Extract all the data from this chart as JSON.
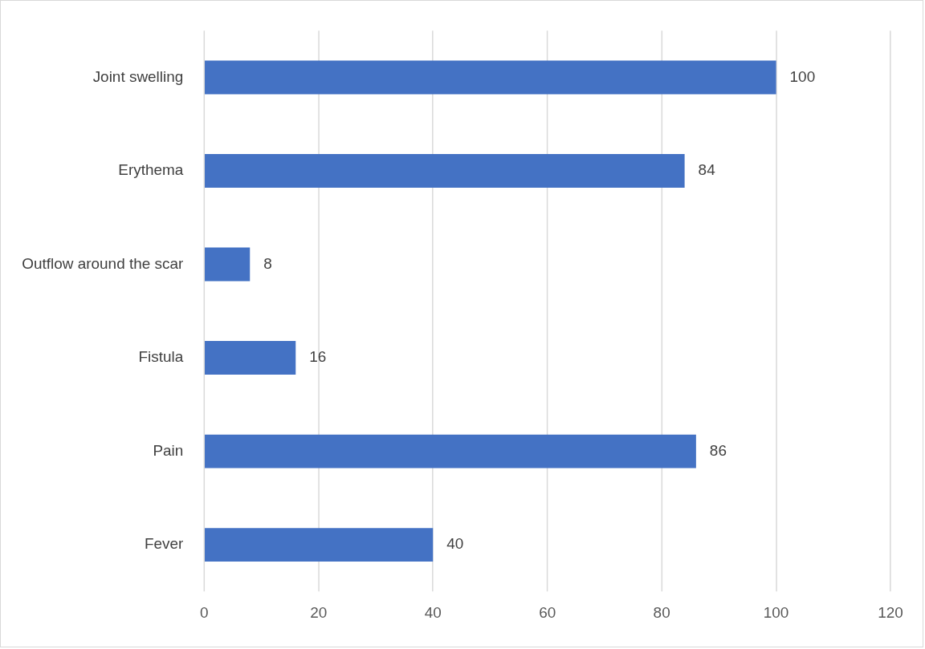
{
  "chart_data": {
    "type": "bar",
    "orientation": "horizontal",
    "categories": [
      "Joint swelling",
      "Erythema",
      "Outflow around the scar",
      "Fistula",
      "Pain",
      "Fever"
    ],
    "values": [
      100,
      84,
      8,
      16,
      86,
      40
    ],
    "color": "#4472c4",
    "xlim": [
      0,
      120
    ],
    "xticks": [
      0,
      20,
      40,
      60,
      80,
      100,
      120
    ],
    "grid": "x",
    "data_labels": true
  }
}
